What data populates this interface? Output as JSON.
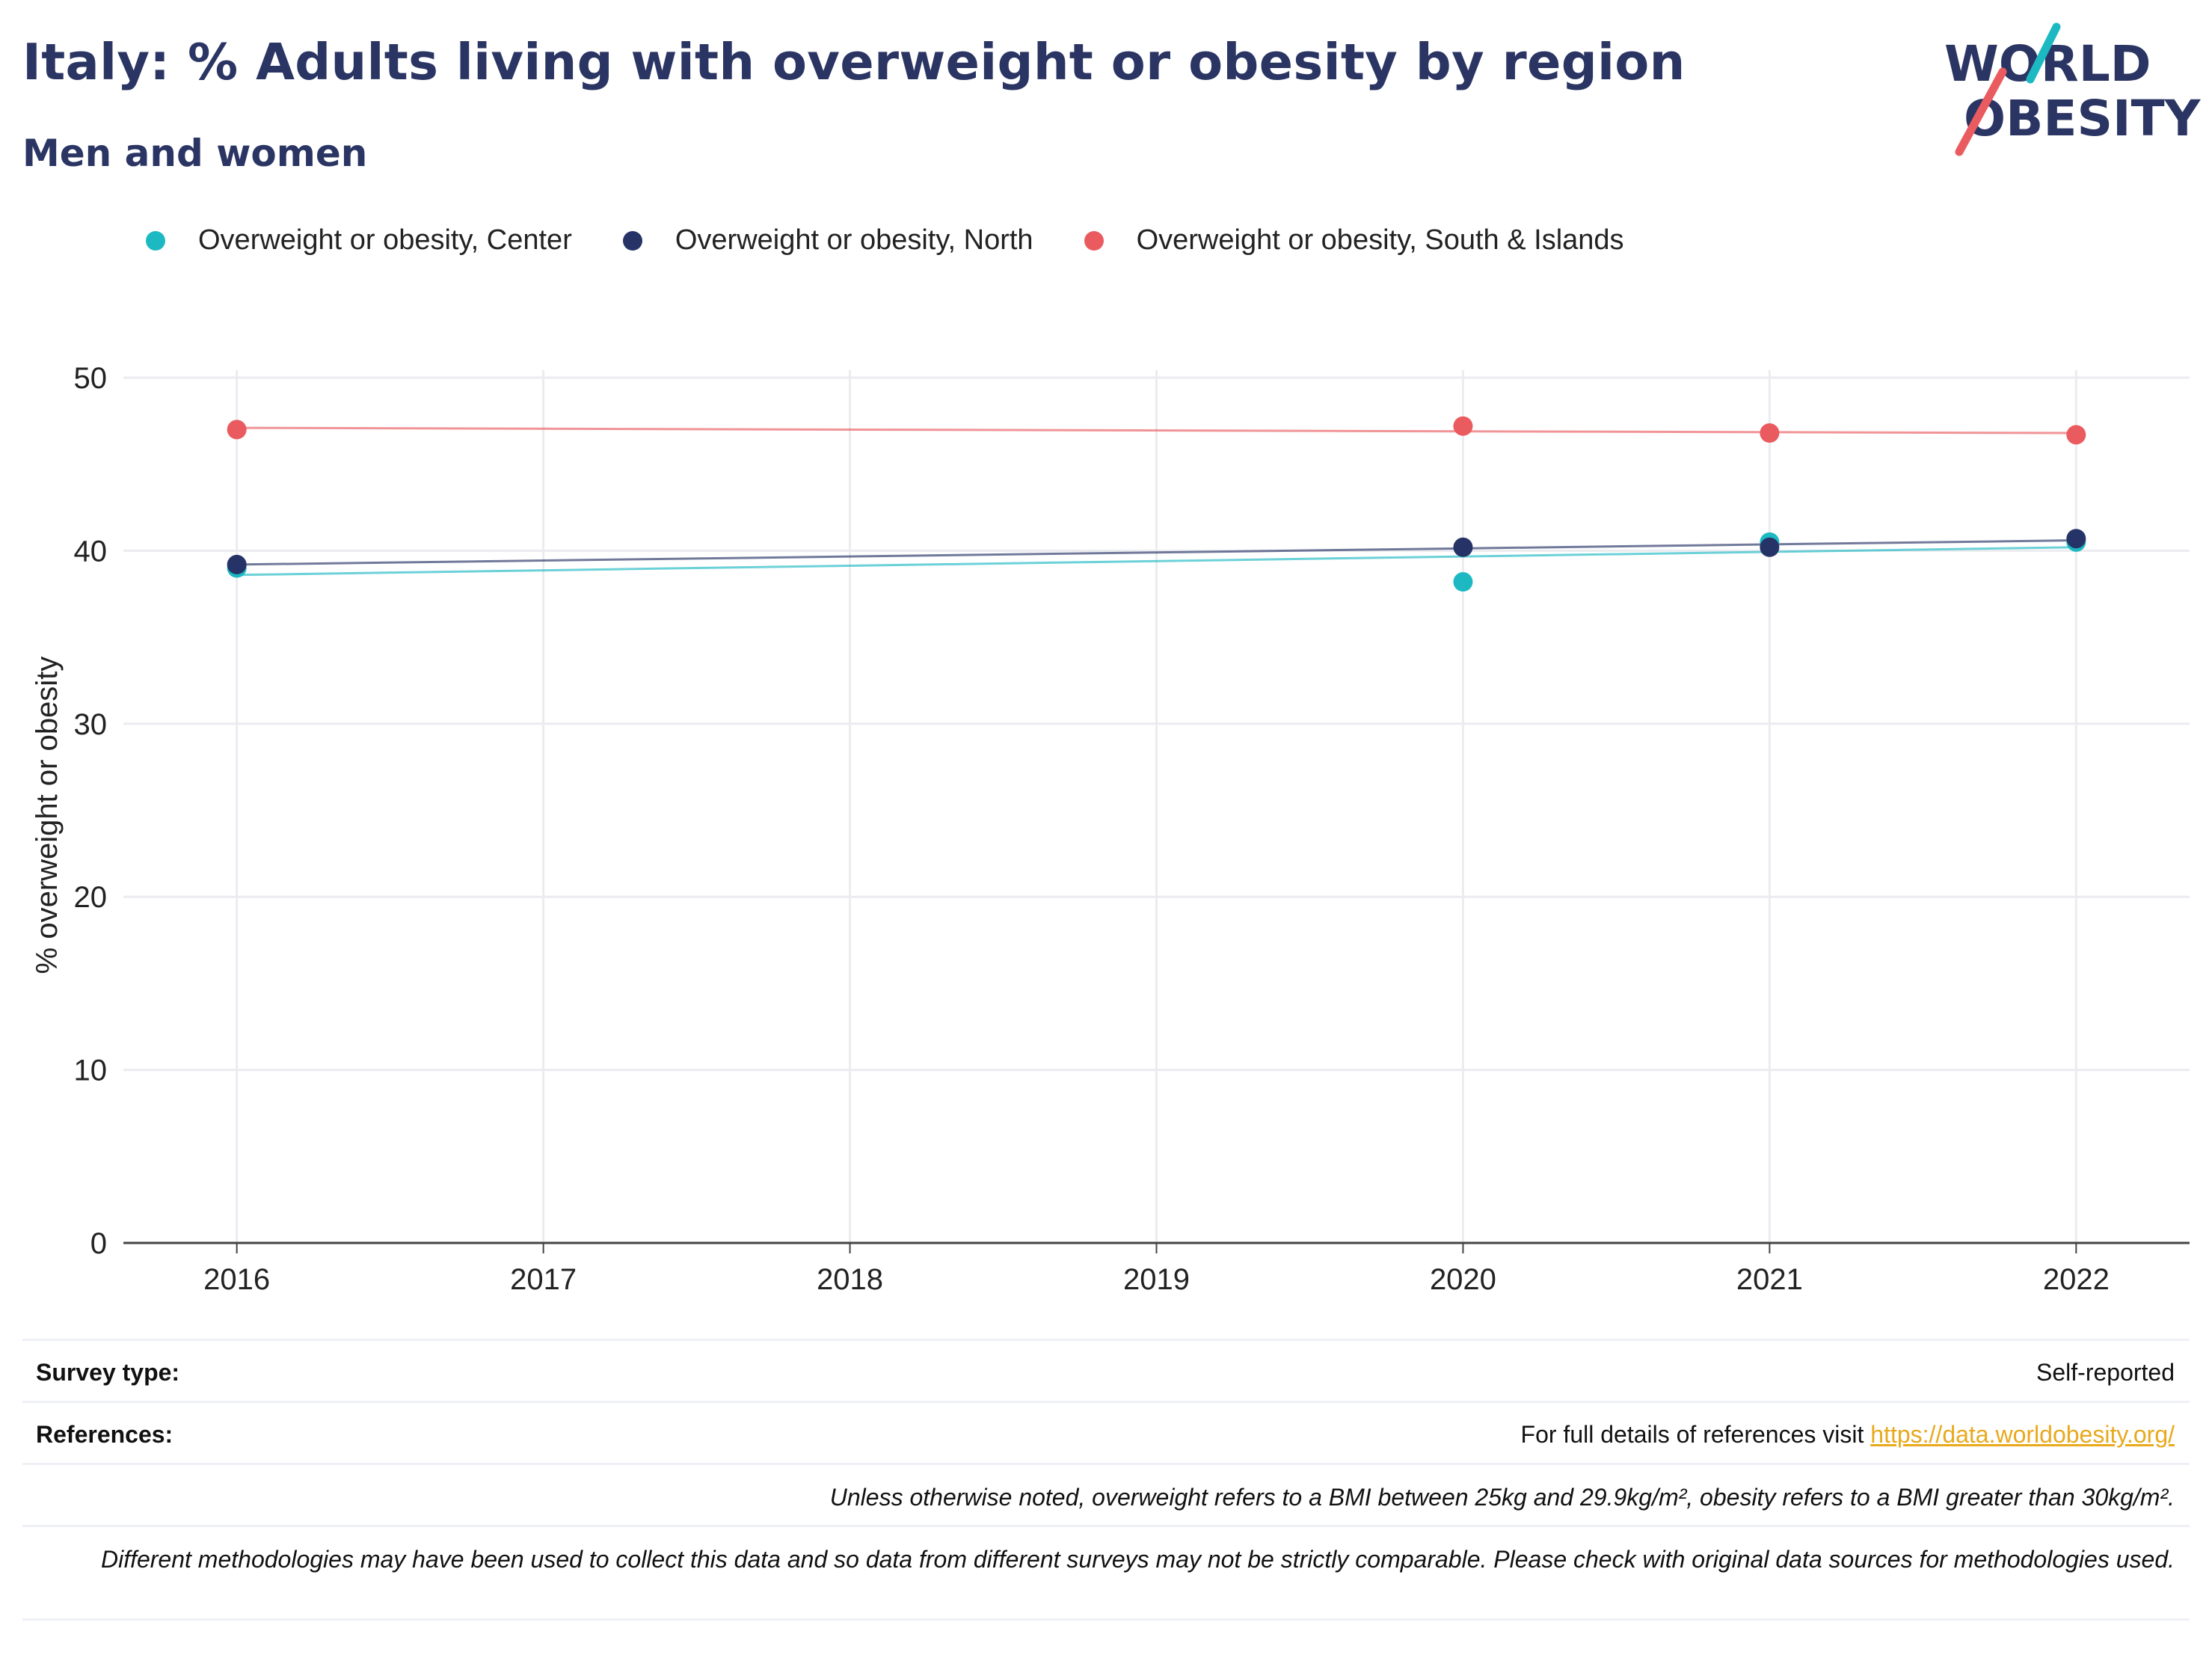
{
  "title": "Italy: % Adults living with overweight or obesity by region",
  "subtitle": "Men and women",
  "logo": {
    "line1": "WORLD",
    "line2": "OBESITY"
  },
  "colors": {
    "center": "#1db9c3",
    "north": "#263366",
    "south": "#ea5b5f"
  },
  "legend": [
    {
      "label": "Overweight or obesity, Center",
      "color": "#1db9c3"
    },
    {
      "label": "Overweight or obesity, North",
      "color": "#263366"
    },
    {
      "label": "Overweight or obesity, South & Islands",
      "color": "#ea5b5f"
    }
  ],
  "chart_data": {
    "type": "scatter",
    "ylabel": "% overweight or obesity",
    "ylim": [
      0,
      50
    ],
    "yticks": [
      0,
      10,
      20,
      30,
      40,
      50
    ],
    "xlim": [
      2015.63,
      2022.37
    ],
    "xticks": [
      2016,
      2017,
      2018,
      2019,
      2020,
      2021,
      2022
    ],
    "grid": true,
    "legend_position": "top",
    "series": [
      {
        "name": "Overweight or obesity, Center",
        "color": "#1db9c3",
        "x": [
          2016,
          2020,
          2021,
          2022
        ],
        "y": [
          39.0,
          38.2,
          40.5,
          40.5
        ],
        "trend": [
          [
            2016,
            38.6
          ],
          [
            2022,
            40.2
          ]
        ]
      },
      {
        "name": "Overweight or obesity, North",
        "color": "#263366",
        "x": [
          2016,
          2020,
          2021,
          2022
        ],
        "y": [
          39.2,
          40.2,
          40.2,
          40.7
        ],
        "trend": [
          [
            2016,
            39.2
          ],
          [
            2022,
            40.6
          ]
        ]
      },
      {
        "name": "Overweight or obesity, South & Islands",
        "color": "#ea5b5f",
        "x": [
          2016,
          2020,
          2021,
          2022
        ],
        "y": [
          47.0,
          47.2,
          46.8,
          46.7
        ],
        "trend": [
          [
            2016,
            47.1
          ],
          [
            2022,
            46.8
          ]
        ]
      }
    ]
  },
  "footer": {
    "survey_label": "Survey type:",
    "survey_value": "Self-reported",
    "references_label": "References:",
    "references_text": "For full details of references visit ",
    "references_link": "https://data.worldobesity.org/",
    "note1": "Unless otherwise noted, overweight refers to a BMI between 25kg and 29.9kg/m², obesity refers to a BMI greater than 30kg/m².",
    "note2": "Different methodologies may have been used to collect this data and so data from different surveys may not be strictly comparable. Please check with original data sources for methodologies used."
  }
}
